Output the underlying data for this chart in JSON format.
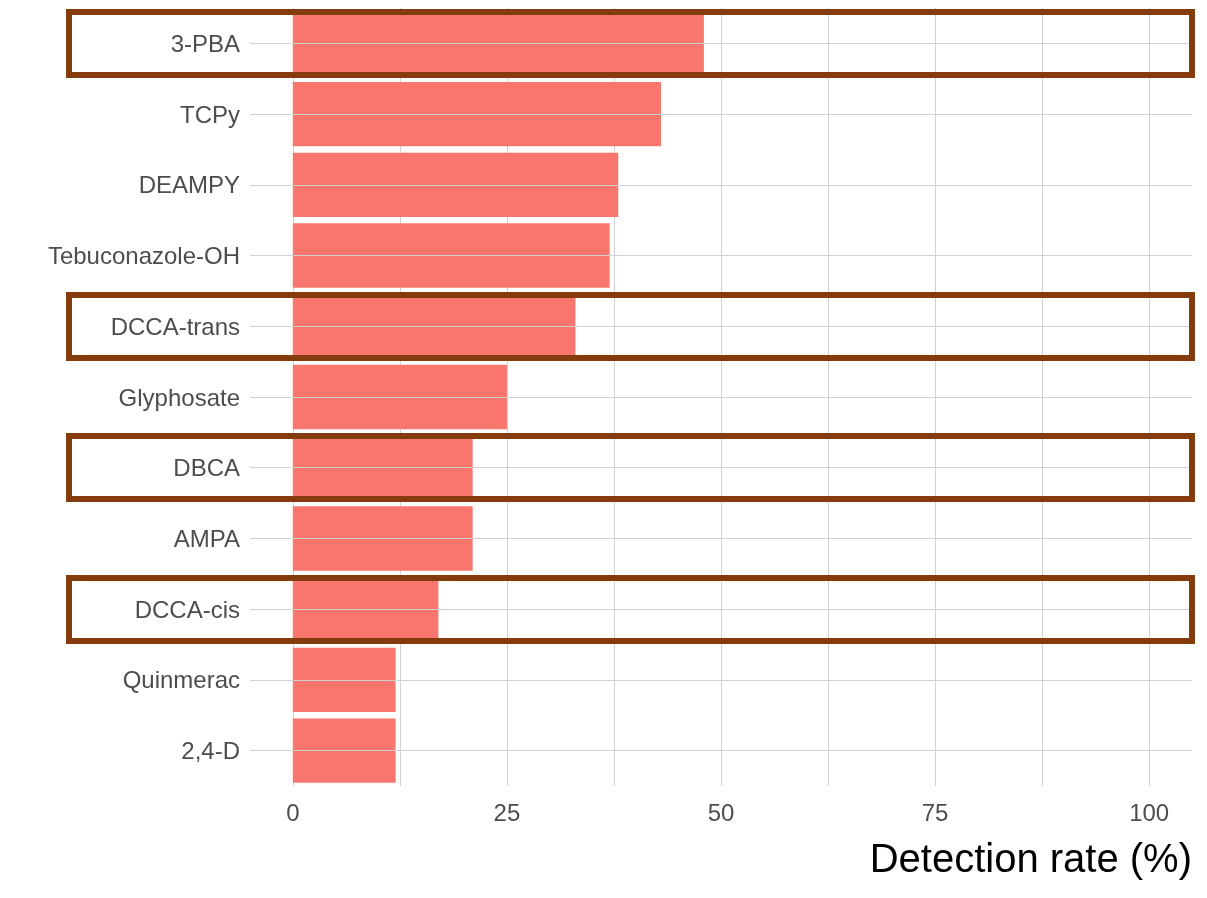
{
  "chart_data": {
    "type": "bar",
    "orientation": "horizontal",
    "xlabel": "Detection rate (%)",
    "categories": [
      "3-PBA",
      "TCPy",
      "DEAMPY",
      "Tebuconazole-OH",
      "DCCA-trans",
      "Glyphosate",
      "DBCA",
      "AMPA",
      "DCCA-cis",
      "Quinmerac",
      "2,4-D"
    ],
    "values": [
      48,
      43,
      38,
      37,
      33,
      25,
      21,
      21,
      17,
      12,
      12
    ],
    "color": "#f8766d",
    "xlim": [
      -5,
      105
    ],
    "xticks": [
      0,
      {
        "value": 12.5,
        "label": null
      },
      25,
      {
        "value": 37.5,
        "label": null
      },
      50,
      {
        "value": 62.5,
        "label": null
      },
      75,
      {
        "value": 87.5,
        "label": null
      },
      100
    ],
    "grid": true
  }
}
